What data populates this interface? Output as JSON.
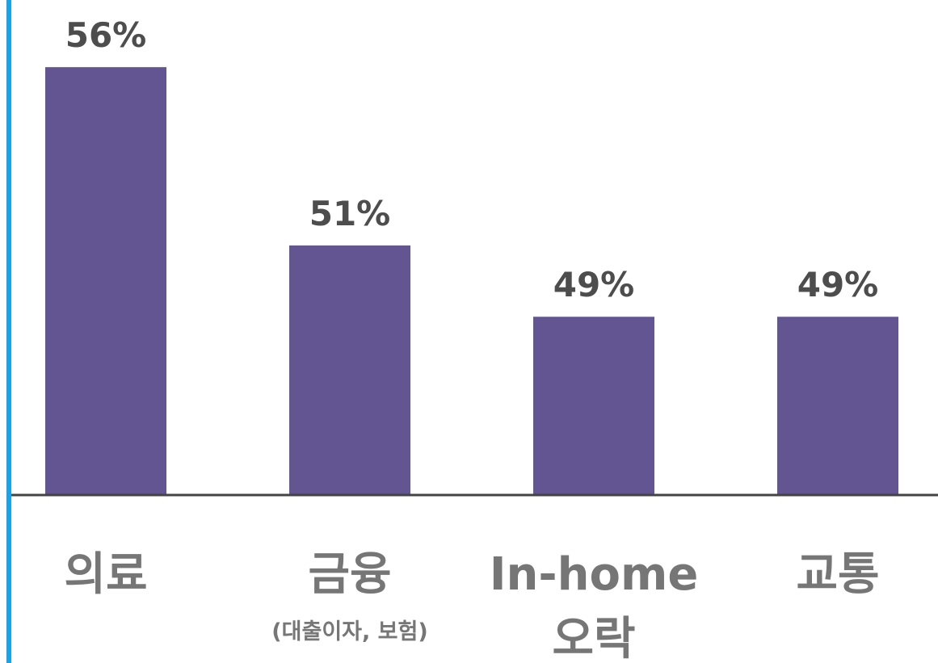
{
  "chart_data": {
    "type": "bar",
    "categories": [
      "의료",
      "금융",
      "In-home 오락",
      "교통"
    ],
    "category_notes": [
      null,
      "(대출이자, 보험)",
      null,
      null
    ],
    "values": [
      56,
      51,
      49,
      49
    ],
    "value_labels": [
      "56%",
      "51%",
      "49%",
      "49%"
    ],
    "color": "#625592",
    "ylim": [
      44,
      57
    ]
  }
}
